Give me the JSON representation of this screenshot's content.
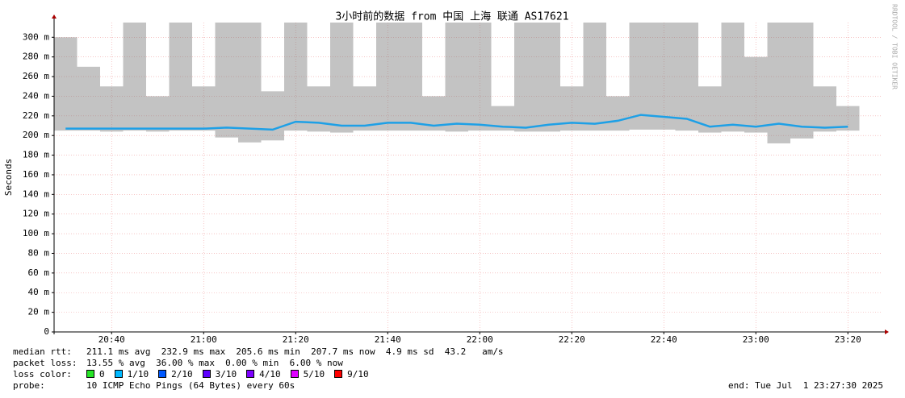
{
  "chart_data": {
    "type": "smokeping",
    "title": "3小时前的数据 from 中国 上海 联通 AS17621",
    "y_label": "Seconds",
    "watermark": "RRDTOOL / TOBI OETIKER",
    "xlim": [
      "20:27:30",
      "23:27:30"
    ],
    "xticks": [
      "20:40",
      "21:00",
      "21:20",
      "21:40",
      "22:00",
      "22:20",
      "22:40",
      "23:00",
      "23:20"
    ],
    "ylim": [
      0,
      0.315
    ],
    "yticks": [
      {
        "value": 0,
        "label": "0"
      },
      {
        "value": 0.02,
        "label": "20 m"
      },
      {
        "value": 0.04,
        "label": "40 m"
      },
      {
        "value": 0.06,
        "label": "60 m"
      },
      {
        "value": 0.08,
        "label": "80 m"
      },
      {
        "value": 0.1,
        "label": "100 m"
      },
      {
        "value": 0.12,
        "label": "120 m"
      },
      {
        "value": 0.14,
        "label": "140 m"
      },
      {
        "value": 0.16,
        "label": "160 m"
      },
      {
        "value": 0.18,
        "label": "180 m"
      },
      {
        "value": 0.2,
        "label": "200 m"
      },
      {
        "value": 0.22,
        "label": "220 m"
      },
      {
        "value": 0.24,
        "label": "240 m"
      },
      {
        "value": 0.26,
        "label": "260 m"
      },
      {
        "value": 0.28,
        "label": "280 m"
      },
      {
        "value": 0.3,
        "label": "300 m"
      }
    ],
    "grid": true,
    "x": [
      "20:30",
      "20:35",
      "20:40",
      "20:45",
      "20:50",
      "20:55",
      "21:00",
      "21:05",
      "21:10",
      "21:15",
      "21:20",
      "21:25",
      "21:30",
      "21:35",
      "21:40",
      "21:45",
      "21:50",
      "21:55",
      "22:00",
      "22:05",
      "22:10",
      "22:15",
      "22:20",
      "22:25",
      "22:30",
      "22:35",
      "22:40",
      "22:45",
      "22:50",
      "22:55",
      "23:00",
      "23:05",
      "23:10",
      "23:15",
      "23:20"
    ],
    "series": [
      {
        "color": "#1ea0e6",
        "values": [
          0.207,
          0.207,
          0.207,
          0.207,
          0.207,
          0.207,
          0.207,
          0.208,
          0.207,
          0.206,
          0.214,
          0.213,
          0.21,
          0.21,
          0.213,
          0.213,
          0.21,
          0.212,
          0.211,
          0.209,
          0.208,
          0.211,
          0.213,
          0.212,
          0.215,
          0.221,
          0.219,
          0.217,
          0.209,
          0.211,
          0.209,
          0.212,
          0.209,
          0.208,
          0.209
        ]
      }
    ],
    "smoke": {
      "color": "#7a7a7a",
      "low": [
        0.205,
        0.205,
        0.204,
        0.205,
        0.204,
        0.205,
        0.205,
        0.198,
        0.193,
        0.195,
        0.205,
        0.204,
        0.203,
        0.205,
        0.205,
        0.205,
        0.205,
        0.204,
        0.205,
        0.205,
        0.204,
        0.204,
        0.205,
        0.205,
        0.205,
        0.206,
        0.206,
        0.205,
        0.203,
        0.204,
        0.203,
        0.192,
        0.197,
        0.204,
        0.205
      ],
      "high": [
        0.3,
        0.27,
        0.25,
        0.315,
        0.24,
        0.315,
        0.25,
        0.315,
        0.315,
        0.245,
        0.315,
        0.25,
        0.315,
        0.25,
        0.315,
        0.315,
        0.24,
        0.315,
        0.315,
        0.23,
        0.315,
        0.315,
        0.25,
        0.315,
        0.24,
        0.315,
        0.315,
        0.315,
        0.25,
        0.315,
        0.28,
        0.315,
        0.315,
        0.25,
        0.23
      ]
    },
    "legend": {
      "median_label": "median rtt:",
      "median_stats": "211.1 ms avg  232.9 ms max  205.6 ms min  207.7 ms now  4.9 ms sd  43.2   am/s",
      "loss_label": "packet loss:",
      "loss_stats": "13.55 % avg  36.00 % max  0.00 % min  6.00 % now",
      "color_label": "loss color:",
      "loss_colors": [
        {
          "label": "0",
          "color": "#26e526"
        },
        {
          "label": "1/10",
          "color": "#00b8ff"
        },
        {
          "label": "2/10",
          "color": "#0059ff"
        },
        {
          "label": "3/10",
          "color": "#5e00ff"
        },
        {
          "label": "4/10",
          "color": "#7e00ff"
        },
        {
          "label": "5/10",
          "color": "#dd00ff"
        },
        {
          "label": "9/10",
          "color": "#ff0000"
        }
      ],
      "probe_label": "probe:",
      "probe": "10 ICMP Echo Pings (64 Bytes) every 60s",
      "end": "end: Tue Jul  1 23:27:30 2025"
    }
  }
}
